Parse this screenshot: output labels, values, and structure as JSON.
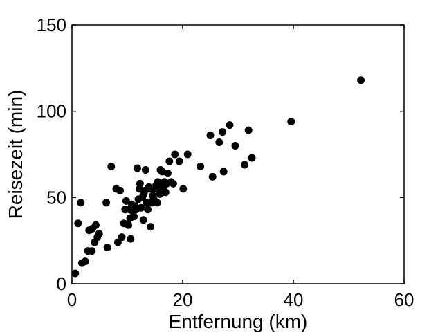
{
  "chart_data": {
    "type": "scatter",
    "title": "",
    "xlabel": "Entfernung (km)",
    "ylabel": "Reisezeit (min)",
    "xlim": [
      0,
      60
    ],
    "ylim": [
      0,
      150
    ],
    "xticks": [
      "0",
      "20",
      "40",
      "60"
    ],
    "yticks": [
      "0",
      "50",
      "100",
      "150"
    ],
    "grid": false,
    "legend": "none",
    "marker_color": "#000000",
    "points": [
      [
        0.6,
        6
      ],
      [
        1.1,
        35
      ],
      [
        1.6,
        47
      ],
      [
        1.8,
        12
      ],
      [
        2.4,
        13
      ],
      [
        2.9,
        19
      ],
      [
        3.1,
        31
      ],
      [
        3.6,
        19
      ],
      [
        3.7,
        32
      ],
      [
        4.1,
        24
      ],
      [
        4.3,
        34
      ],
      [
        4.6,
        27
      ],
      [
        4.9,
        29
      ],
      [
        6.2,
        47
      ],
      [
        6.4,
        21
      ],
      [
        7.1,
        68
      ],
      [
        8.0,
        55
      ],
      [
        8.3,
        24
      ],
      [
        8.7,
        54
      ],
      [
        9.0,
        27
      ],
      [
        9.4,
        35
      ],
      [
        9.6,
        43
      ],
      [
        9.8,
        48
      ],
      [
        10.2,
        34
      ],
      [
        10.4,
        43
      ],
      [
        10.5,
        38
      ],
      [
        10.6,
        26
      ],
      [
        10.8,
        46
      ],
      [
        11.0,
        42
      ],
      [
        11.2,
        39
      ],
      [
        11.4,
        45
      ],
      [
        11.6,
        43
      ],
      [
        11.8,
        67
      ],
      [
        12.0,
        49
      ],
      [
        12.2,
        55
      ],
      [
        12.3,
        58
      ],
      [
        12.5,
        44
      ],
      [
        12.7,
        50
      ],
      [
        12.9,
        37
      ],
      [
        13.0,
        52
      ],
      [
        13.2,
        54
      ],
      [
        13.3,
        66
      ],
      [
        13.5,
        47
      ],
      [
        13.7,
        43
      ],
      [
        13.9,
        56
      ],
      [
        14.1,
        55
      ],
      [
        14.2,
        33
      ],
      [
        14.4,
        47
      ],
      [
        14.6,
        51
      ],
      [
        14.8,
        49
      ],
      [
        15.0,
        55
      ],
      [
        15.2,
        57
      ],
      [
        15.4,
        47
      ],
      [
        15.5,
        59
      ],
      [
        15.7,
        56
      ],
      [
        15.9,
        52
      ],
      [
        16.0,
        66
      ],
      [
        16.3,
        65
      ],
      [
        16.5,
        56
      ],
      [
        16.7,
        59
      ],
      [
        16.9,
        53
      ],
      [
        17.1,
        58
      ],
      [
        17.3,
        64
      ],
      [
        17.6,
        71
      ],
      [
        17.9,
        59
      ],
      [
        18.3,
        58
      ],
      [
        18.6,
        75
      ],
      [
        19.4,
        71
      ],
      [
        20.1,
        55
      ],
      [
        20.9,
        75
      ],
      [
        23.2,
        68
      ],
      [
        25.0,
        86
      ],
      [
        25.4,
        62
      ],
      [
        26.6,
        82
      ],
      [
        27.2,
        88
      ],
      [
        27.4,
        65
      ],
      [
        28.5,
        92
      ],
      [
        29.5,
        80
      ],
      [
        31.2,
        69
      ],
      [
        31.9,
        89
      ],
      [
        32.5,
        73
      ],
      [
        39.6,
        94
      ],
      [
        52.2,
        118
      ]
    ]
  }
}
